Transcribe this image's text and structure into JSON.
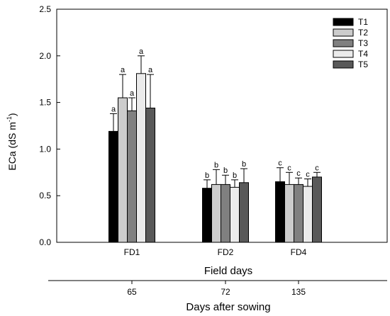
{
  "chart_data": {
    "type": "bar",
    "categories": [
      "FD1",
      "FD2",
      "FD4"
    ],
    "xlabel": "Field days",
    "ylabel": "ECa (dS m",
    "ylabel_sup": "-1",
    "ylabel_close": ")",
    "ylim": [
      0,
      2.5
    ],
    "yticks": [
      "0.0",
      "0.5",
      "1.0",
      "1.5",
      "2.0",
      "2.5"
    ],
    "ytick_values": [
      0,
      0.5,
      1.0,
      1.5,
      2.0,
      2.5
    ],
    "legend_position": "top-right",
    "series": [
      {
        "name": "T1",
        "color": "#000000",
        "values": [
          1.19,
          0.58,
          0.65
        ],
        "errors": [
          0.19,
          0.09,
          0.15
        ],
        "letters": [
          "a",
          "b",
          "c"
        ]
      },
      {
        "name": "T2",
        "color": "#cccccc",
        "values": [
          1.55,
          0.62,
          0.62
        ],
        "errors": [
          0.25,
          0.16,
          0.13
        ],
        "letters": [
          "a",
          "b",
          "c"
        ]
      },
      {
        "name": "T3",
        "color": "#808080",
        "values": [
          1.41,
          0.62,
          0.62
        ],
        "errors": [
          0.14,
          0.1,
          0.07
        ],
        "letters": [
          "a",
          "b",
          "c"
        ]
      },
      {
        "name": "T4",
        "color": "#ebebeb",
        "values": [
          1.81,
          0.59,
          0.6
        ],
        "errors": [
          0.19,
          0.08,
          0.08
        ],
        "letters": [
          "a",
          "b",
          "c"
        ]
      },
      {
        "name": "T5",
        "color": "#595959",
        "values": [
          1.44,
          0.64,
          0.7
        ],
        "errors": [
          0.36,
          0.15,
          0.05
        ],
        "letters": [
          "a",
          "b",
          "c"
        ]
      }
    ],
    "secondary_axis": {
      "label": "Days after sowing",
      "ticks": [
        "65",
        "72",
        "135"
      ]
    }
  }
}
